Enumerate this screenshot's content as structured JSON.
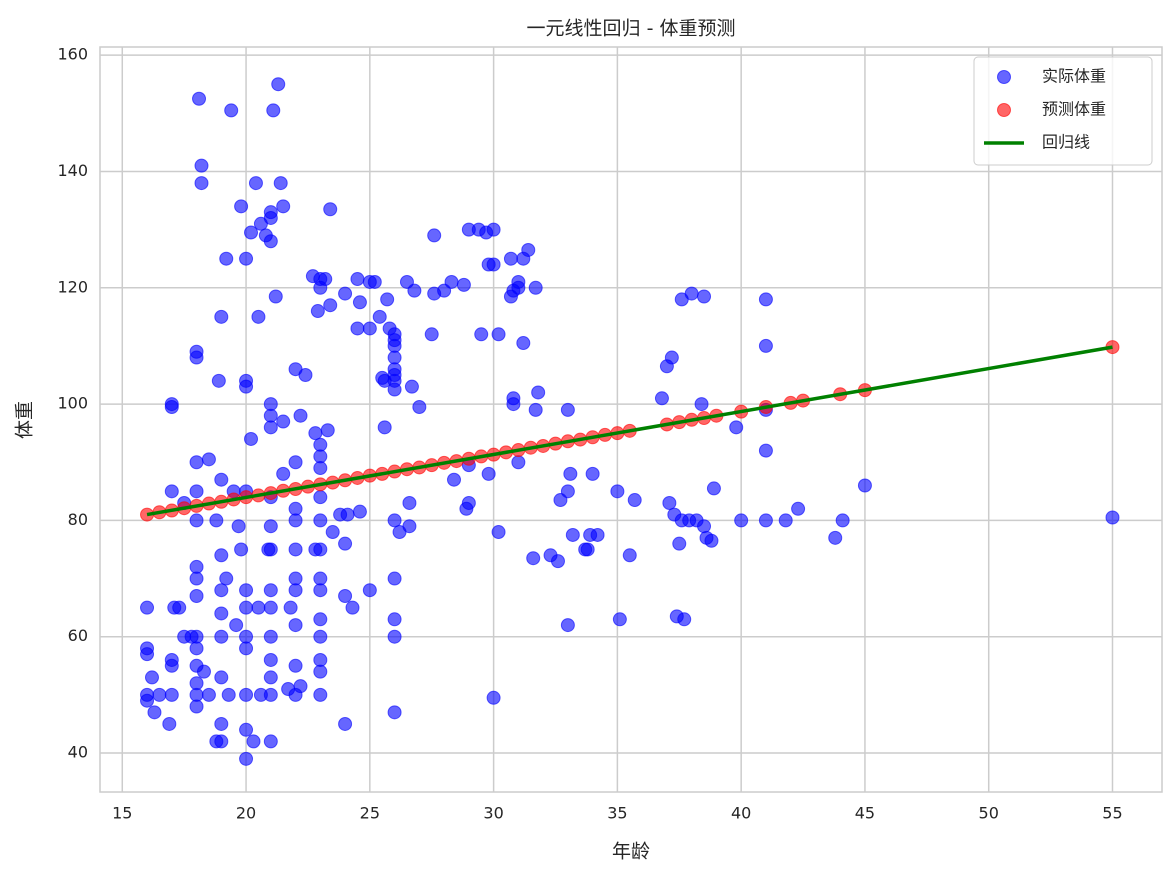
{
  "chart_data": {
    "type": "scatter",
    "title": "一元线性回归 - 体重预测",
    "x_label": "年龄",
    "y_label": "体重",
    "xlim": [
      14.1,
      57.0
    ],
    "ylim": [
      33.3,
      161.4
    ],
    "xticks": [
      15,
      20,
      25,
      30,
      35,
      40,
      45,
      50,
      55
    ],
    "yticks": [
      40,
      60,
      80,
      100,
      120,
      140,
      160
    ],
    "grid": true,
    "legend": "upper right",
    "series": [
      {
        "name": "实际体重",
        "type": "scatter",
        "color": "#0000ff",
        "opacity": 0.6,
        "x": [
          16,
          16,
          16,
          16,
          16,
          16.2,
          16.3,
          16.5,
          16.9,
          17,
          17,
          17,
          17,
          17,
          17,
          17.1,
          17.3,
          17.5,
          17.5,
          17.8,
          18,
          18,
          18,
          18,
          18,
          18,
          18,
          18,
          18,
          18,
          18,
          18,
          18,
          18,
          18.1,
          18.2,
          18.2,
          18.3,
          18.5,
          18.5,
          18.8,
          18.8,
          18.9,
          19,
          19,
          19,
          19,
          19,
          19,
          19,
          19,
          19,
          19.2,
          19.2,
          19.3,
          19.4,
          19.5,
          19.6,
          19.7,
          19.8,
          19.8,
          20,
          20,
          20,
          20,
          20,
          20,
          20,
          20,
          20,
          20,
          20,
          20.2,
          20.2,
          20.3,
          20.4,
          20.5,
          20.5,
          20.6,
          20.6,
          20.8,
          20.9,
          21,
          21,
          21,
          21,
          21,
          21,
          21,
          21,
          21,
          21,
          21,
          21,
          21,
          21,
          21,
          21,
          21.1,
          21.2,
          21.3,
          21.4,
          21.5,
          21.5,
          21.5,
          21.7,
          21.8,
          22,
          22,
          22,
          22,
          22,
          22,
          22,
          22,
          22,
          22,
          22.2,
          22.2,
          22.4,
          22.7,
          22.8,
          22.8,
          22.9,
          23,
          23,
          23,
          23,
          23,
          23,
          23,
          23,
          23,
          23,
          23,
          23,
          23,
          23,
          23,
          23.2,
          23.3,
          23.4,
          23.4,
          23.5,
          23.8,
          24,
          24,
          24,
          24,
          24.1,
          24.3,
          24.5,
          24.5,
          24.6,
          24.6,
          25,
          25,
          25,
          25.2,
          25.4,
          25.5,
          25.6,
          25.6,
          25.7,
          25.8,
          26,
          26,
          26,
          26,
          26,
          26,
          26,
          26,
          26,
          26,
          26,
          26,
          26,
          26.2,
          26.5,
          26.6,
          26.6,
          26.7,
          26.8,
          27,
          27.5,
          27.6,
          27.6,
          28,
          28.3,
          28.4,
          28.8,
          28.9,
          29,
          29,
          29,
          29.4,
          29.5,
          29.7,
          29.8,
          29.8,
          30,
          30,
          30,
          30.2,
          30.2,
          30.7,
          30.7,
          30.8,
          30.8,
          30.8,
          31,
          31,
          31,
          31.2,
          31.2,
          31.4,
          31.6,
          31.7,
          31.7,
          31.8,
          32.3,
          32.6,
          32.7,
          33,
          33,
          33,
          33.1,
          33.2,
          33.7,
          33.8,
          33.9,
          34,
          34.2,
          35,
          35.1,
          35.5,
          35.7,
          36.8,
          37,
          37.1,
          37.2,
          37.3,
          37.4,
          37.5,
          37.6,
          37.6,
          37.7,
          37.9,
          38,
          38.2,
          38.4,
          38.5,
          38.5,
          38.6,
          38.8,
          38.9,
          39.8,
          40,
          41,
          41,
          41,
          41,
          41,
          41.8,
          42.3,
          43.8,
          44.1,
          45,
          55
        ],
        "values": [
          65,
          58,
          57,
          50,
          49,
          53,
          47,
          50,
          45,
          56,
          55,
          50,
          85,
          100,
          99.5,
          65,
          65,
          60,
          83,
          60,
          109,
          108,
          90,
          85,
          80,
          72,
          70,
          67,
          60,
          58,
          55,
          52,
          50,
          48,
          152.5,
          141,
          138,
          54,
          90.5,
          50,
          80,
          42,
          104,
          115,
          87,
          74,
          68,
          64,
          60,
          53,
          45,
          42,
          125,
          70,
          50,
          150.5,
          85,
          62,
          79,
          134,
          75,
          125,
          104,
          103,
          85,
          68,
          65,
          60,
          58,
          50,
          44,
          39,
          129.5,
          94,
          42,
          138,
          115,
          65,
          131,
          50,
          129,
          75,
          133,
          132,
          128,
          100,
          98,
          96,
          84,
          79,
          75,
          68,
          65,
          60,
          56,
          53,
          50,
          42,
          150.5,
          118.5,
          155,
          138,
          134,
          97,
          88,
          51,
          65,
          106,
          90,
          82,
          80,
          75,
          70,
          68,
          62,
          55,
          50,
          98,
          51.5,
          105,
          122,
          95,
          75,
          116,
          121.5,
          120,
          93,
          91,
          89,
          84,
          80,
          75,
          70,
          68,
          63,
          60,
          56,
          54,
          50,
          121.5,
          95.5,
          133.5,
          117,
          78,
          81,
          119,
          76,
          67,
          45,
          81,
          65,
          121.5,
          113,
          117.5,
          81.5,
          121,
          113,
          68,
          121,
          115,
          104.5,
          104,
          96,
          118,
          113,
          112,
          111,
          110,
          108,
          106,
          105,
          104,
          102.5,
          80,
          70,
          63,
          60,
          47,
          78,
          121,
          83,
          79,
          103,
          119.5,
          99.5,
          112,
          129,
          119,
          119.5,
          121,
          87,
          120.5,
          82,
          83,
          89.5,
          130,
          130,
          112,
          129.5,
          124,
          88,
          130,
          124,
          49.5,
          112,
          78,
          118.5,
          125,
          101,
          100,
          119.5,
          121,
          120,
          90,
          125,
          110.5,
          126.5,
          73.5,
          99,
          120,
          102,
          74,
          73,
          83.5,
          99,
          85,
          62,
          88,
          77.5,
          75,
          75,
          77.5,
          88,
          77.5,
          85,
          63,
          74,
          83.5,
          101,
          106.5,
          83,
          108,
          81,
          63.5,
          76,
          80,
          118,
          63,
          80,
          119,
          80,
          100,
          118.5,
          79,
          77,
          76.5,
          85.5,
          96,
          80,
          118,
          110,
          99,
          92,
          80,
          80,
          82,
          77,
          80,
          86,
          80.5
        ]
      },
      {
        "name": "预测体重",
        "type": "scatter",
        "color": "#ff0000",
        "opacity": 0.6,
        "x": [
          16,
          16.5,
          17,
          17.5,
          18,
          18.5,
          19,
          19.5,
          20,
          20.5,
          21,
          21.5,
          22,
          22.5,
          23,
          23.5,
          24,
          24.5,
          25,
          25.5,
          26,
          26.5,
          27,
          27.5,
          28,
          28.5,
          29,
          29.5,
          30,
          30.5,
          31,
          31.5,
          32,
          32.5,
          33,
          33.5,
          34,
          34.5,
          35,
          35.5,
          37,
          37.5,
          38,
          38.5,
          39,
          40,
          41,
          42,
          42.5,
          44,
          45,
          55
        ],
        "values": [
          81.0,
          81.4,
          81.7,
          82.1,
          82.5,
          82.9,
          83.2,
          83.6,
          84.0,
          84.3,
          84.7,
          85.1,
          85.4,
          85.8,
          86.2,
          86.5,
          86.9,
          87.3,
          87.7,
          88.0,
          88.4,
          88.8,
          89.1,
          89.5,
          89.9,
          90.2,
          90.6,
          91.0,
          91.3,
          91.7,
          92.1,
          92.5,
          92.8,
          93.2,
          93.6,
          93.9,
          94.3,
          94.7,
          95.0,
          95.4,
          96.5,
          96.9,
          97.3,
          97.6,
          98.0,
          98.7,
          99.5,
          100.2,
          100.6,
          101.7,
          102.4,
          109.8
        ]
      },
      {
        "name": "回归线",
        "type": "line",
        "color": "#008000",
        "x": [
          16,
          55
        ],
        "values": [
          81.0,
          109.8
        ]
      }
    ]
  }
}
